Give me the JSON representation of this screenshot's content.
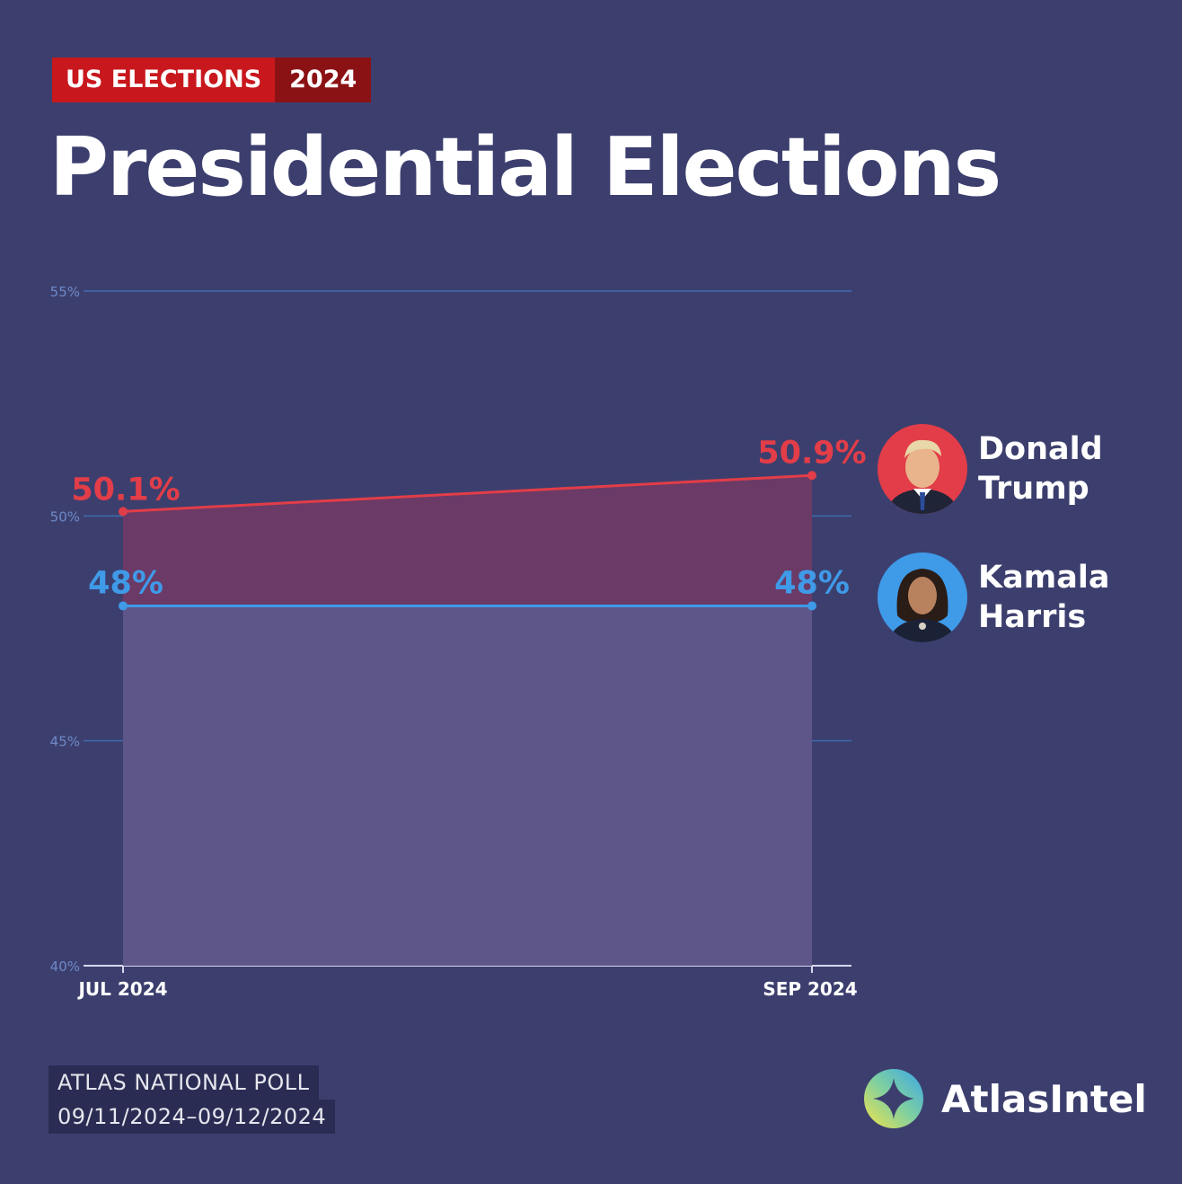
{
  "header": {
    "tag_primary": "US ELECTIONS",
    "tag_secondary": "2024",
    "title": "Presidential Elections"
  },
  "legend": [
    {
      "first": "Donald",
      "last": "Trump",
      "color": "#e23d48",
      "icon": "trump-portrait-icon"
    },
    {
      "first": "Kamala",
      "last": "Harris",
      "color": "#3f9ae8",
      "icon": "harris-portrait-icon"
    }
  ],
  "footer": {
    "poll_name": "ATLAS NATIONAL POLL",
    "poll_dates": "09/11/2024–09/12/2024",
    "brand": "AtlasIntel"
  },
  "chart_data": {
    "type": "line",
    "title": "Presidential Elections",
    "categories": [
      "JUL 2024",
      "SEP 2024"
    ],
    "ylim": [
      40,
      55
    ],
    "y_ticks": [
      55,
      50,
      45,
      40
    ],
    "y_tick_labels": [
      "55%",
      "50%",
      "45%",
      "40%"
    ],
    "series": [
      {
        "name": "Donald Trump",
        "color": "#e23d48",
        "values": [
          50.1,
          50.9
        ],
        "labels": [
          "50.1%",
          "50.9%"
        ]
      },
      {
        "name": "Kamala Harris",
        "color": "#3f9ae8",
        "values": [
          48,
          48
        ],
        "labels": [
          "48%",
          "48%"
        ]
      }
    ],
    "grid": true,
    "legend": "right"
  }
}
